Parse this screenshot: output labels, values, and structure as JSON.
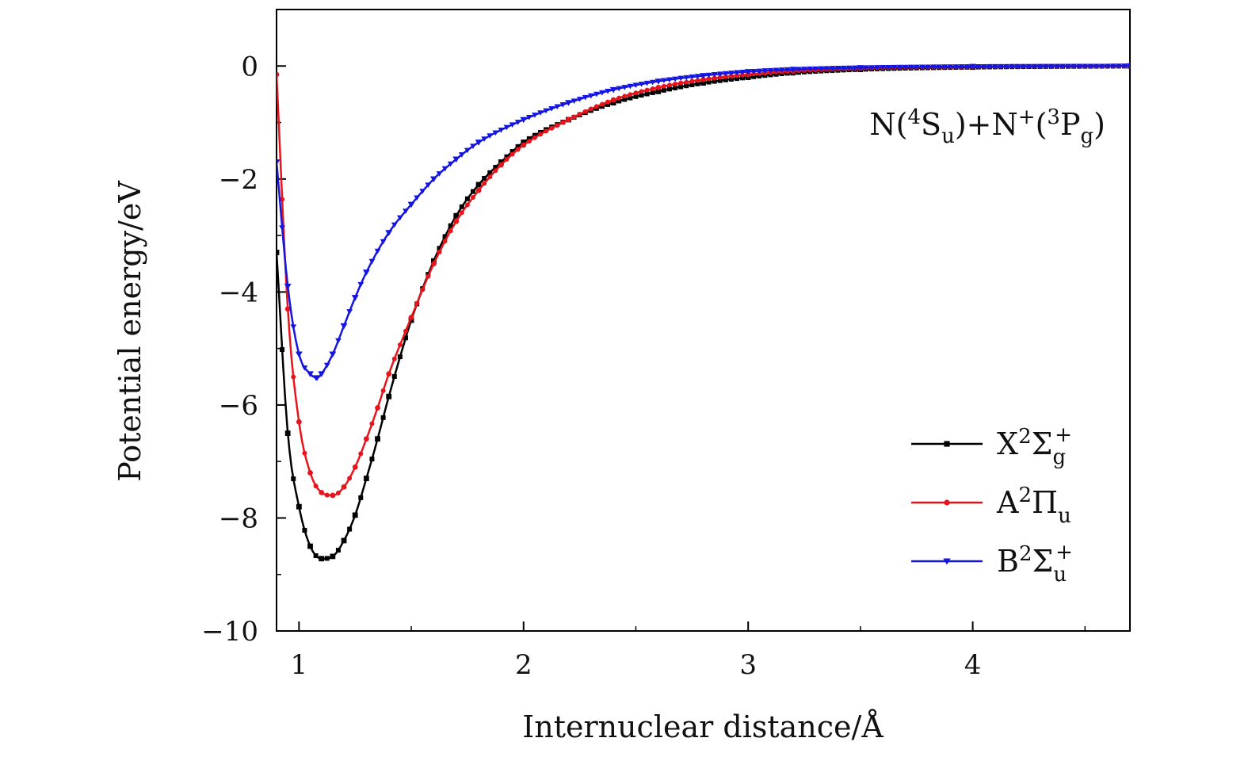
{
  "chart_data": {
    "type": "line",
    "xlabel": "Internuclear distance/Å",
    "ylabel": "Potential energy/eV",
    "xlim": [
      0.9,
      4.7
    ],
    "ylim": [
      -10,
      1
    ],
    "x_ticks": [
      1,
      2,
      3,
      4
    ],
    "x_tick_labels": [
      "1",
      "2",
      "3",
      "4"
    ],
    "y_ticks": [
      0,
      -2,
      -4,
      -6,
      -8,
      -10
    ],
    "y_tick_labels": [
      "0",
      "−2",
      "−4",
      "−6",
      "−8",
      "−10"
    ],
    "grid": false,
    "legend_position": "bottom-right",
    "annotation": {
      "text": "N(⁴Sᵤ)+N⁺(³P_g)",
      "parts": [
        "N(",
        "4",
        "S",
        "u",
        ")+N",
        "+",
        "(",
        "3",
        "P",
        "g",
        ")"
      ]
    },
    "series": [
      {
        "name": "X²Σg+",
        "legend": {
          "base": "X",
          "sup": "2",
          "sym": "Σ",
          "sub": "g",
          "supr": "+"
        },
        "color": "#000000",
        "marker": "square",
        "x": [
          0.9,
          0.95,
          1.0,
          1.05,
          1.1,
          1.15,
          1.2,
          1.25,
          1.3,
          1.35,
          1.4,
          1.5,
          1.6,
          1.7,
          1.8,
          1.9,
          2.0,
          2.2,
          2.4,
          2.6,
          2.8,
          3.0,
          3.2,
          3.5,
          4.0,
          4.7
        ],
        "y": [
          -3.3,
          -6.5,
          -7.8,
          -8.5,
          -8.72,
          -8.68,
          -8.4,
          -7.95,
          -7.3,
          -6.6,
          -5.85,
          -4.5,
          -3.45,
          -2.65,
          -2.1,
          -1.7,
          -1.35,
          -0.95,
          -0.65,
          -0.45,
          -0.3,
          -0.2,
          -0.12,
          -0.06,
          -0.02,
          0.0
        ]
      },
      {
        "name": "A²Πu",
        "legend": {
          "base": "A",
          "sup": "2",
          "sym": "Π",
          "sub": "u",
          "supr": ""
        },
        "color": "#e8141c",
        "marker": "circle",
        "x": [
          0.9,
          0.95,
          1.0,
          1.05,
          1.1,
          1.15,
          1.2,
          1.25,
          1.3,
          1.35,
          1.4,
          1.5,
          1.6,
          1.7,
          1.8,
          1.9,
          2.0,
          2.2,
          2.4,
          2.6,
          2.8,
          3.0,
          3.2,
          3.5,
          4.0,
          4.7
        ],
        "y": [
          -0.15,
          -4.3,
          -6.3,
          -7.2,
          -7.55,
          -7.6,
          -7.45,
          -7.1,
          -6.6,
          -6.05,
          -5.45,
          -4.45,
          -3.5,
          -2.75,
          -2.2,
          -1.75,
          -1.4,
          -0.95,
          -0.6,
          -0.38,
          -0.24,
          -0.15,
          -0.09,
          -0.04,
          -0.01,
          0.0
        ]
      },
      {
        "name": "B²Σu+",
        "legend": {
          "base": "B",
          "sup": "2",
          "sym": "Σ",
          "sub": "u",
          "supr": "+"
        },
        "color": "#1515e0",
        "marker": "triangle-down",
        "x": [
          0.9,
          0.95,
          1.0,
          1.05,
          1.08,
          1.1,
          1.15,
          1.2,
          1.25,
          1.3,
          1.4,
          1.5,
          1.6,
          1.7,
          1.8,
          2.0,
          2.2,
          2.4,
          2.6,
          2.8,
          3.0,
          3.2,
          3.5,
          4.0,
          4.7
        ],
        "y": [
          -1.7,
          -3.9,
          -5.1,
          -5.45,
          -5.52,
          -5.45,
          -5.1,
          -4.6,
          -4.1,
          -3.65,
          -2.95,
          -2.45,
          -2.0,
          -1.65,
          -1.35,
          -0.95,
          -0.65,
          -0.42,
          -0.27,
          -0.17,
          -0.1,
          -0.06,
          -0.03,
          -0.01,
          0.0
        ]
      }
    ]
  }
}
